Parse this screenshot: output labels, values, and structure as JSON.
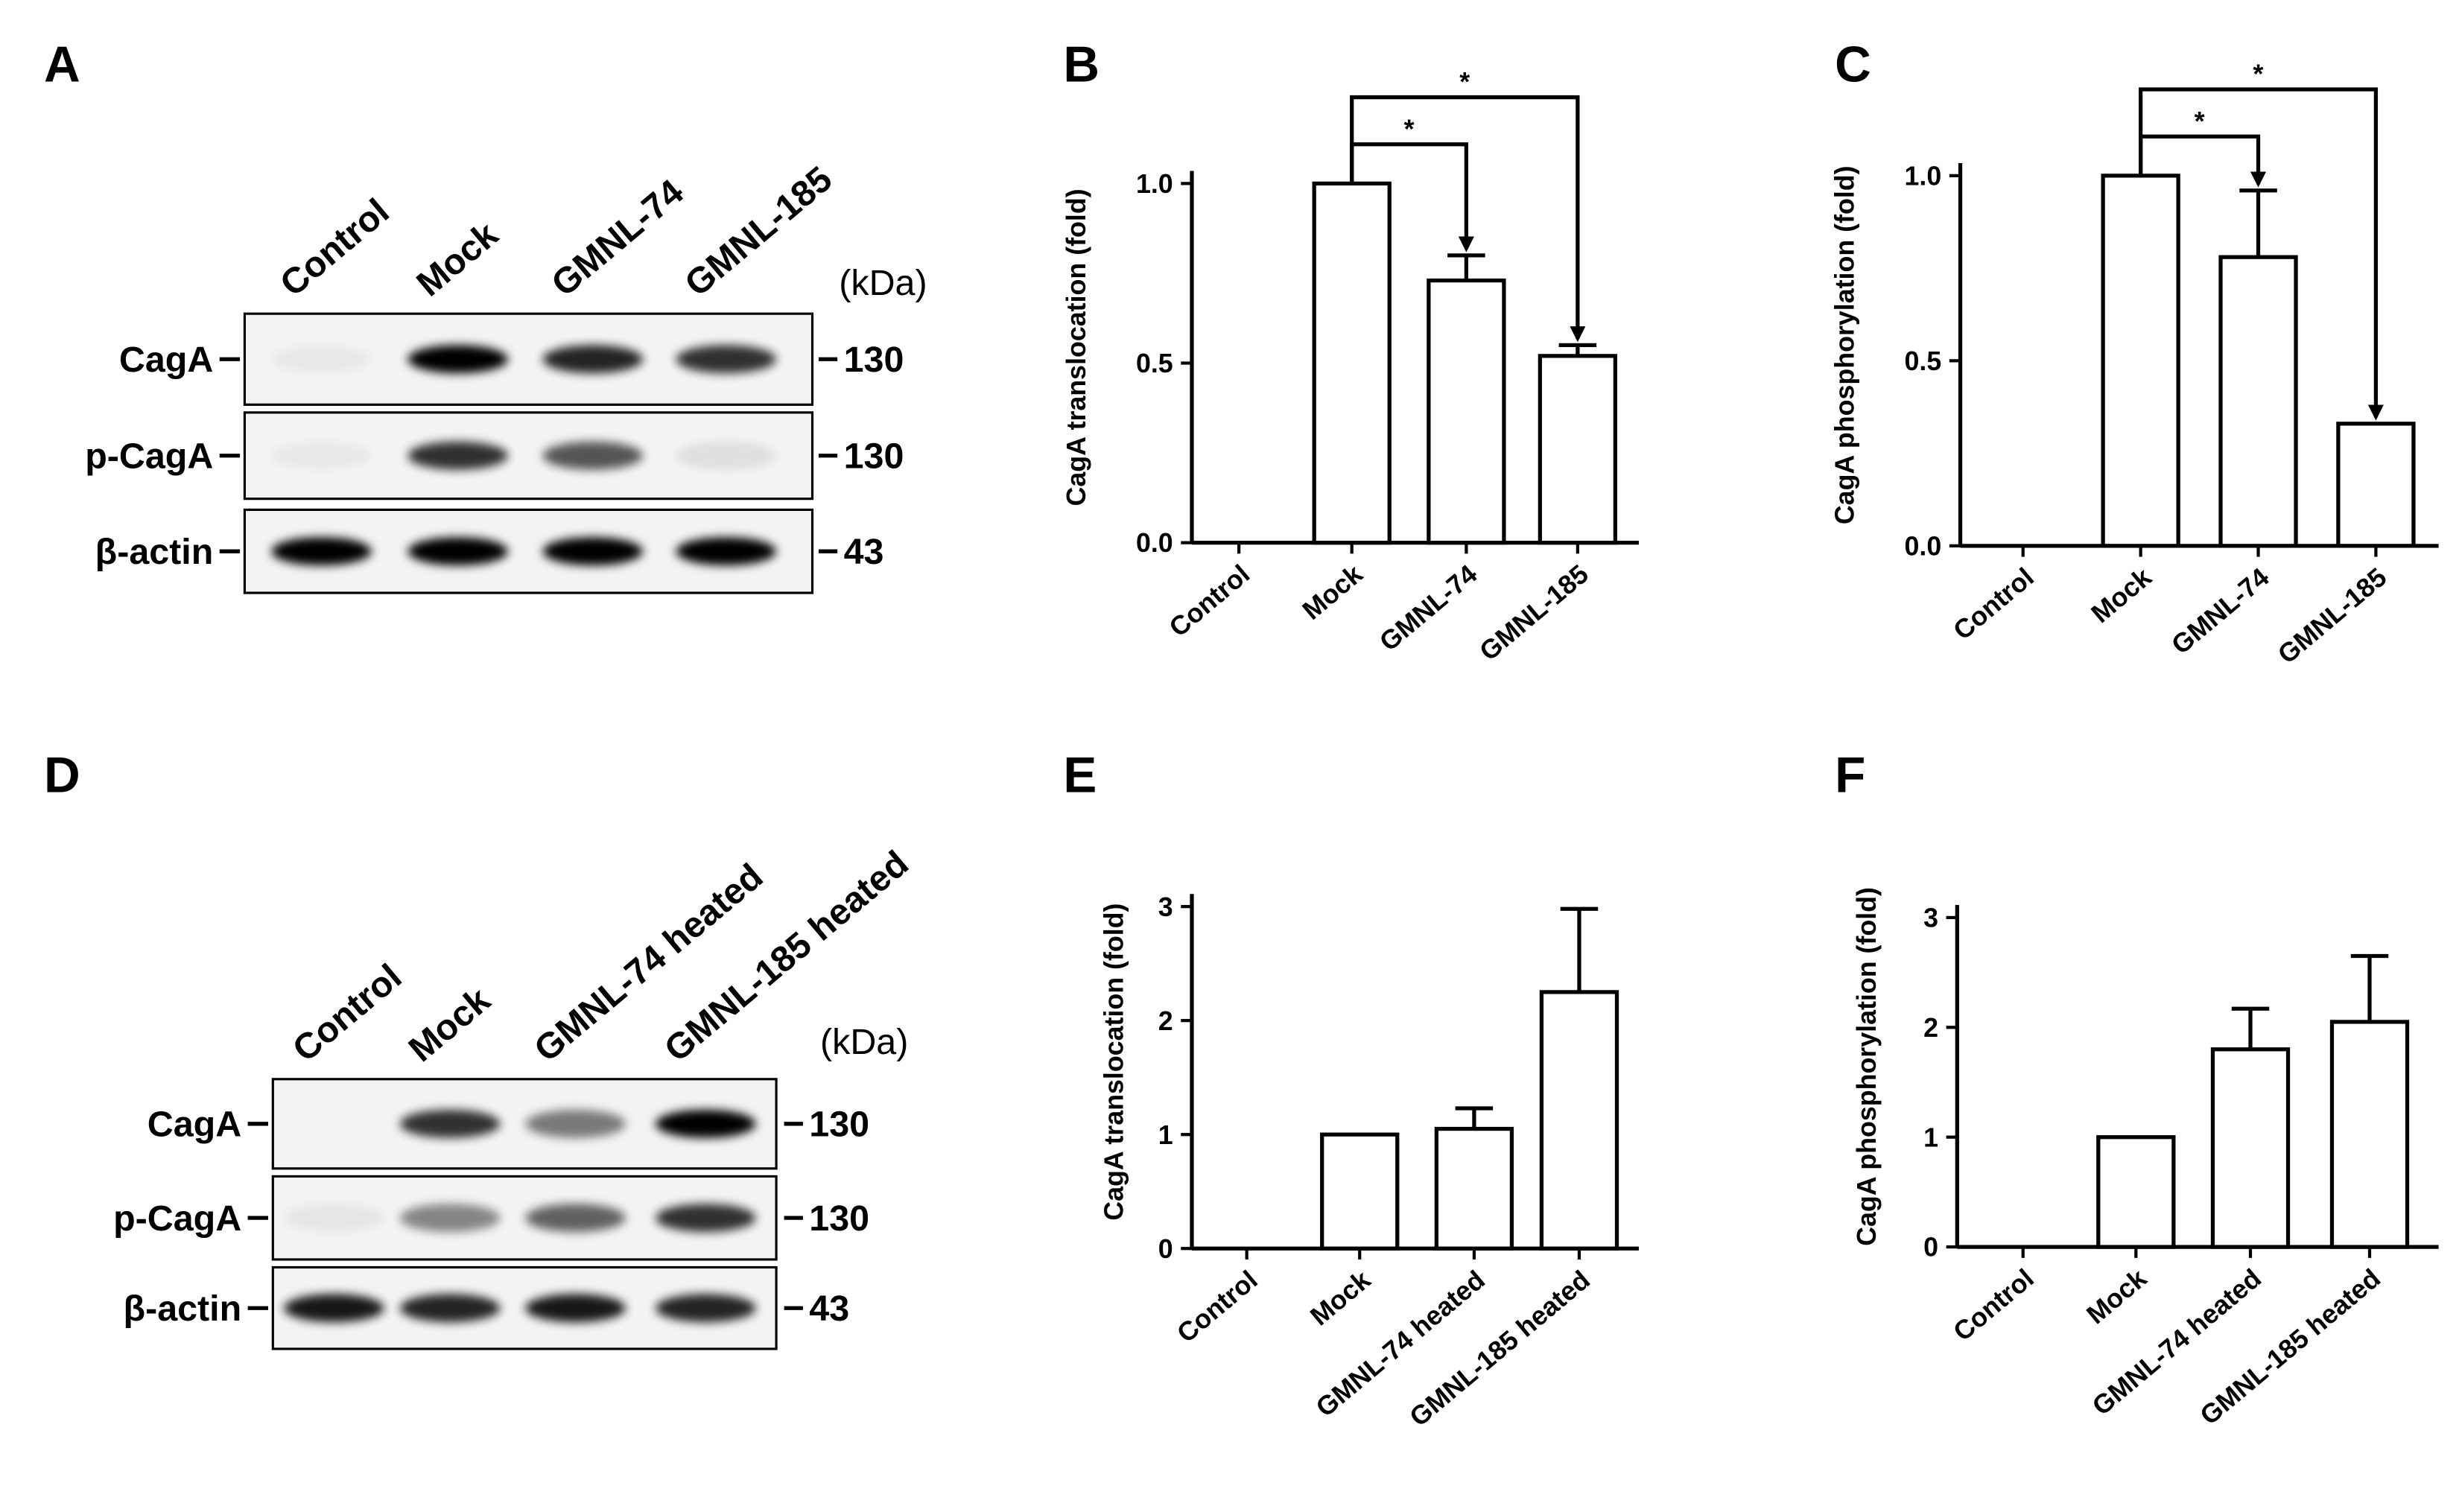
{
  "blots": [
    {
      "panel": "A",
      "lanes": [
        "Control",
        "Mock",
        "GMNL-74",
        "GMNL-185"
      ],
      "unit": "(kDa)",
      "rows": [
        {
          "name": "CagA",
          "size": 130
        },
        {
          "name": "p-CagA",
          "size": 130
        },
        {
          "name": "β-actin",
          "size": 43
        }
      ]
    },
    {
      "panel": "D",
      "lanes": [
        "Control",
        "Mock",
        "GMNL-74 heated",
        "GMNL-185 heated"
      ],
      "unit": "(kDa)",
      "rows": [
        {
          "name": "CagA",
          "size": 130
        },
        {
          "name": "p-CagA",
          "size": 130
        },
        {
          "name": "β-actin",
          "size": 43
        }
      ]
    }
  ],
  "chart_data": [
    {
      "type": "bar",
      "panel": "B",
      "ylabel": "CagA translocation (fold)",
      "categories": [
        "Control",
        "Mock",
        "GMNL-74",
        "GMNL-185"
      ],
      "values": [
        0,
        1.0,
        0.73,
        0.52
      ],
      "errors": [
        0,
        0,
        0.07,
        0.03
      ],
      "color": "#ffffff",
      "ylim": [
        0,
        1.0
      ],
      "yticks": [
        {
          "value": 0,
          "label": "0.0"
        },
        {
          "value": 0.5,
          "label": "0.5"
        },
        {
          "value": 1.0,
          "label": "1.0"
        }
      ],
      "significance": [
        {
          "label": "*",
          "between": [
            "Mock",
            "GMNL-74"
          ]
        },
        {
          "label": "*",
          "between": [
            "Mock",
            "GMNL-185"
          ]
        }
      ]
    },
    {
      "type": "bar",
      "panel": "C",
      "ylabel": "CagA phosphorylation (fold)",
      "categories": [
        "Control",
        "Mock",
        "GMNL-74",
        "GMNL-185"
      ],
      "values": [
        0,
        1.0,
        0.78,
        0.33
      ],
      "errors": [
        0,
        0,
        0.18,
        0
      ],
      "color": "#ffffff",
      "ylim": [
        0,
        1.0
      ],
      "yticks": [
        {
          "value": 0,
          "label": "0.0"
        },
        {
          "value": 0.5,
          "label": "0.5"
        },
        {
          "value": 1.0,
          "label": "1.0"
        }
      ],
      "significance": [
        {
          "label": "*",
          "between": [
            "Mock",
            "GMNL-74"
          ]
        },
        {
          "label": "*",
          "between": [
            "Mock",
            "GMNL-185"
          ]
        }
      ]
    },
    {
      "type": "bar",
      "panel": "E",
      "ylabel": "CagA translocation (fold)",
      "categories": [
        "Control",
        "Mock",
        "GMNL-74 heated",
        "GMNL-185 heated"
      ],
      "values": [
        0,
        1.0,
        1.05,
        2.25
      ],
      "errors": [
        0,
        0,
        0.18,
        0.73
      ],
      "color": "#ffffff",
      "ylim": [
        0,
        3
      ],
      "yticks": [
        0,
        1,
        2,
        3
      ]
    },
    {
      "type": "bar",
      "panel": "F",
      "ylabel": "CagA phosphorylation (fold)",
      "categories": [
        "Control",
        "Mock",
        "GMNL-74 heated",
        "GMNL-185 heated"
      ],
      "values": [
        0,
        1.0,
        1.8,
        2.05
      ],
      "errors": [
        0,
        0,
        0.37,
        0.6
      ],
      "color": "#ffffff",
      "ylim": [
        0,
        3
      ],
      "yticks": [
        0,
        1,
        2,
        3
      ]
    }
  ]
}
